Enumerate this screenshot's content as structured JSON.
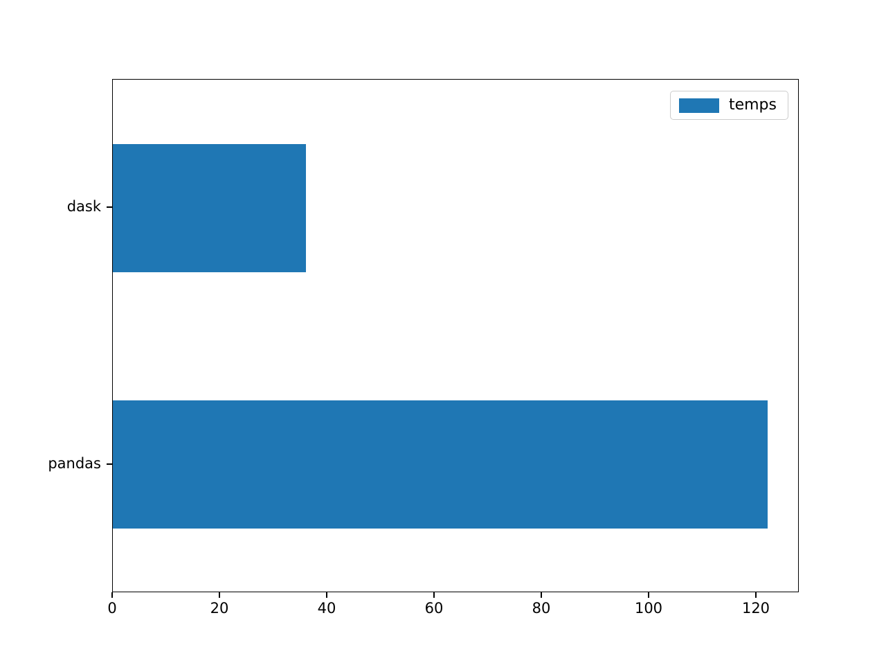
{
  "chart_data": {
    "type": "bar",
    "orientation": "horizontal",
    "title": "",
    "xlabel": "",
    "ylabel": "",
    "categories": [
      "dask",
      "pandas"
    ],
    "series": [
      {
        "name": "temps",
        "values": [
          36,
          122
        ]
      }
    ],
    "xlim": [
      0,
      128
    ],
    "xticks": [
      0,
      20,
      40,
      60,
      80,
      100,
      120
    ],
    "bar_relative_height": 0.5,
    "grid": false,
    "legend": {
      "visible": true,
      "position": "upper-right",
      "label": "temps"
    },
    "colors": {
      "bar": "#1f77b4",
      "spine": "#000000",
      "legend_border": "#cccccc"
    }
  }
}
